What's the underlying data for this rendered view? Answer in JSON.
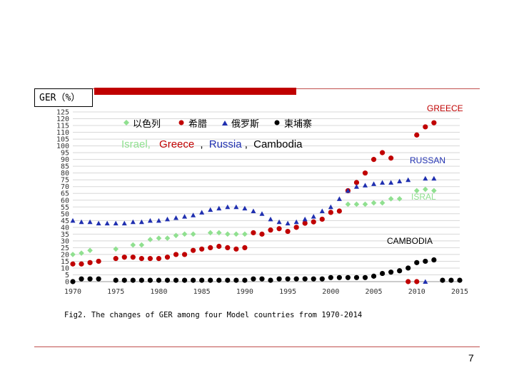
{
  "slide": {
    "box_label": "GER（%）",
    "caption": "Fig2. The changes of GER among four Model countries from 1970-2014",
    "page_number": "7",
    "accent_color": "#c00000"
  },
  "chart_data": {
    "type": "scatter",
    "title": "",
    "xlabel": "",
    "ylabel": "GER（%）",
    "xlim": [
      1970,
      2015
    ],
    "ylim": [
      0,
      125
    ],
    "x_ticks": [
      "1970",
      "1975",
      "1980",
      "1985",
      "1990",
      "1995",
      "2000",
      "2005",
      "2010",
      "2015"
    ],
    "y_ticks": [
      "0",
      "5",
      "10",
      "15",
      "20",
      "25",
      "30",
      "35",
      "40",
      "45",
      "50",
      "55",
      "60",
      "65",
      "70",
      "75",
      "80",
      "85",
      "90",
      "95",
      "100",
      "105",
      "110",
      "115",
      "120",
      "125"
    ],
    "grid": true,
    "legend_position": "top-left",
    "legend_cn": [
      "以色列",
      "希腊",
      "俄罗斯",
      "柬埔寨"
    ],
    "legend_en": {
      "israel": "Israel,",
      "greece": "Greece",
      "sep1": ",",
      "russia": "Russia",
      "sep2": ",",
      "cambodia": "Cambodia"
    },
    "annotations": {
      "greece": "GREECE",
      "russia": "RUSSAN",
      "israel": "ISRAL",
      "cambodia": "CAMBODIA"
    },
    "series": [
      {
        "key": "israel",
        "color": "#90e090",
        "marker": "diamond",
        "points": [
          [
            1970,
            20
          ],
          [
            1971,
            21
          ],
          [
            1972,
            23
          ],
          [
            1975,
            24
          ],
          [
            1977,
            27
          ],
          [
            1978,
            27
          ],
          [
            1979,
            31
          ],
          [
            1980,
            32
          ],
          [
            1981,
            32
          ],
          [
            1982,
            34
          ],
          [
            1983,
            35
          ],
          [
            1984,
            35
          ],
          [
            1986,
            36
          ],
          [
            1987,
            36
          ],
          [
            1988,
            35
          ],
          [
            1989,
            35
          ],
          [
            1990,
            35
          ],
          [
            1991,
            36
          ],
          [
            2002,
            57
          ],
          [
            2003,
            57
          ],
          [
            2004,
            57
          ],
          [
            2005,
            58
          ],
          [
            2006,
            58
          ],
          [
            2007,
            61
          ],
          [
            2008,
            61
          ],
          [
            2010,
            67
          ],
          [
            2011,
            68
          ],
          [
            2012,
            67
          ]
        ]
      },
      {
        "key": "greece",
        "color": "#c00000",
        "marker": "circle",
        "points": [
          [
            1970,
            13
          ],
          [
            1971,
            13
          ],
          [
            1972,
            14
          ],
          [
            1973,
            15
          ],
          [
            1975,
            17
          ],
          [
            1976,
            18
          ],
          [
            1977,
            18
          ],
          [
            1978,
            17
          ],
          [
            1979,
            17
          ],
          [
            1980,
            17
          ],
          [
            1981,
            18
          ],
          [
            1982,
            20
          ],
          [
            1983,
            20
          ],
          [
            1984,
            23
          ],
          [
            1985,
            24
          ],
          [
            1986,
            25
          ],
          [
            1987,
            26
          ],
          [
            1988,
            25
          ],
          [
            1989,
            24
          ],
          [
            1990,
            25
          ],
          [
            1991,
            36
          ],
          [
            1992,
            35
          ],
          [
            1993,
            38
          ],
          [
            1994,
            39
          ],
          [
            1995,
            37
          ],
          [
            1996,
            40
          ],
          [
            1997,
            43
          ],
          [
            1998,
            44
          ],
          [
            1999,
            46
          ],
          [
            2000,
            51
          ],
          [
            2001,
            52
          ],
          [
            2002,
            67
          ],
          [
            2003,
            73
          ],
          [
            2004,
            80
          ],
          [
            2005,
            90
          ],
          [
            2006,
            95
          ],
          [
            2007,
            91
          ],
          [
            2010,
            108
          ],
          [
            2011,
            114
          ],
          [
            2012,
            117
          ]
        ]
      },
      {
        "key": "russia",
        "color": "#2030b0",
        "marker": "triangle",
        "points": [
          [
            1970,
            45
          ],
          [
            1971,
            44
          ],
          [
            1972,
            44
          ],
          [
            1973,
            43
          ],
          [
            1974,
            43
          ],
          [
            1975,
            43
          ],
          [
            1976,
            43
          ],
          [
            1977,
            44
          ],
          [
            1978,
            44
          ],
          [
            1979,
            45
          ],
          [
            1980,
            45
          ],
          [
            1981,
            46
          ],
          [
            1982,
            47
          ],
          [
            1983,
            48
          ],
          [
            1984,
            49
          ],
          [
            1985,
            51
          ],
          [
            1986,
            53
          ],
          [
            1987,
            54
          ],
          [
            1988,
            55
          ],
          [
            1989,
            55
          ],
          [
            1990,
            54
          ],
          [
            1991,
            52
          ],
          [
            1992,
            50
          ],
          [
            1993,
            46
          ],
          [
            1994,
            44
          ],
          [
            1995,
            43
          ],
          [
            1996,
            44
          ],
          [
            1997,
            46
          ],
          [
            1998,
            48
          ],
          [
            1999,
            52
          ],
          [
            2000,
            55
          ],
          [
            2001,
            61
          ],
          [
            2002,
            67
          ],
          [
            2003,
            70
          ],
          [
            2004,
            71
          ],
          [
            2005,
            72
          ],
          [
            2006,
            73
          ],
          [
            2007,
            73
          ],
          [
            2008,
            74
          ],
          [
            2009,
            75
          ],
          [
            2011,
            76
          ],
          [
            2012,
            76
          ]
        ]
      },
      {
        "key": "cambodia",
        "color": "#000000",
        "marker": "circle",
        "points": [
          [
            1970,
            0
          ],
          [
            1971,
            2
          ],
          [
            1972,
            2
          ],
          [
            1973,
            2
          ],
          [
            1975,
            1
          ],
          [
            1976,
            1
          ],
          [
            1977,
            1
          ],
          [
            1978,
            1
          ],
          [
            1979,
            1
          ],
          [
            1980,
            1
          ],
          [
            1981,
            1
          ],
          [
            1982,
            1
          ],
          [
            1983,
            1
          ],
          [
            1984,
            1
          ],
          [
            1985,
            1
          ],
          [
            1986,
            1
          ],
          [
            1987,
            1
          ],
          [
            1988,
            1
          ],
          [
            1989,
            1
          ],
          [
            1990,
            1
          ],
          [
            1991,
            2
          ],
          [
            1992,
            2
          ],
          [
            1993,
            1
          ],
          [
            1994,
            2
          ],
          [
            1995,
            2
          ],
          [
            1996,
            2
          ],
          [
            1997,
            2
          ],
          [
            1998,
            2
          ],
          [
            1999,
            2
          ],
          [
            2000,
            3
          ],
          [
            2001,
            3
          ],
          [
            2002,
            3
          ],
          [
            2003,
            3
          ],
          [
            2004,
            3
          ],
          [
            2005,
            4
          ],
          [
            2006,
            6
          ],
          [
            2007,
            7
          ],
          [
            2008,
            8
          ],
          [
            2009,
            10
          ],
          [
            2010,
            14
          ],
          [
            2011,
            15
          ],
          [
            2012,
            16
          ],
          [
            2013,
            1
          ],
          [
            2014,
            1
          ],
          [
            2015,
            1
          ]
        ]
      },
      {
        "key": "outliers",
        "color": "#c00000",
        "marker": "circle",
        "points": [
          [
            2009,
            0
          ],
          [
            2010,
            0
          ]
        ]
      },
      {
        "key": "russia-outlier",
        "color": "#2030b0",
        "marker": "triangle",
        "points": [
          [
            2011,
            0
          ]
        ]
      }
    ]
  }
}
